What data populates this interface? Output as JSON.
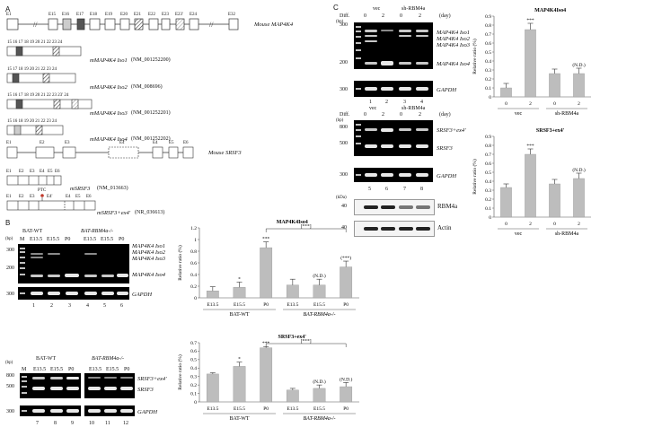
{
  "panels": {
    "a": "A",
    "b": "B",
    "c": "C"
  },
  "panel_a": {
    "map4k4_gene": {
      "exons": [
        "E1",
        "E15",
        "E16",
        "E17",
        "E18",
        "E19",
        "E20",
        "E21",
        "E22",
        "E23",
        "E23'",
        "E24",
        "E32"
      ],
      "break_mark": "//",
      "label": "Mouse MAP4K4"
    },
    "map4k4_isoforms": [
      {
        "exons": "15 16 17 18 19 20 21 22 23 24",
        "name": "mMAP4K4 Iso1",
        "accession": "(NM_001252200)"
      },
      {
        "exons": "15 17 18 19 20 21 22 23 24",
        "name": "mMAP4K4 Iso2",
        "accession": "(NM_008696)"
      },
      {
        "exons": "15 16 17 18 19 20 21 22 23 23' 24",
        "name": "mMAP4K4 Iso3",
        "accession": "(NM_001252201)"
      },
      {
        "exons": "15 16 18 19 20 21 22 23 24",
        "name": "mMAP4K4 Iso4",
        "accession": "(NM_001252202)"
      }
    ],
    "srsf3_gene": {
      "exons": [
        "E1",
        "E2",
        "E3",
        "E4'",
        "E4",
        "E5",
        "E6"
      ],
      "label": "Mouse SRSF3"
    },
    "srsf3_isoforms": [
      {
        "exons": [
          "E1",
          "E2",
          "E3",
          "E4",
          "E5",
          "E6"
        ],
        "name": "mSRSF3",
        "accession": "(NM_013663)"
      },
      {
        "exons": [
          "E1",
          "E2",
          "E3",
          "E4'",
          "E4",
          "E5",
          "E6"
        ],
        "name": "mSRSF3+ex4'",
        "accession": "(NR_036613)",
        "ptc": "PTC"
      }
    ]
  },
  "panel_b": {
    "gel_top": {
      "bp_label": "(bp)",
      "lane_M": "M",
      "groups": [
        "BAT-WT",
        "BAT-RBM4a-/-"
      ],
      "lanes": [
        "E13.5",
        "E15.5",
        "P0",
        "E13.5",
        "E15.5",
        "P0"
      ],
      "lane_numbers": [
        "1",
        "2",
        "3",
        "4",
        "5",
        "6"
      ],
      "markers": [
        "300",
        "200",
        "300"
      ],
      "band_labels": [
        "MAP4K4 Iso1",
        "MAP4K4 Iso2",
        "MAP4K4 Iso3",
        "MAP4K4 Iso4"
      ],
      "control_label": "GAPDH"
    },
    "gel_bottom": {
      "bp_label": "(bp)",
      "lane_M": "M",
      "groups": [
        "BAT-WT",
        "BAT-RBM4a-/-"
      ],
      "lanes": [
        "E13.5",
        "E15.5",
        "P0",
        "E13.5",
        "E15.5",
        "P0"
      ],
      "lane_numbers": [
        "7",
        "8",
        "9",
        "10",
        "11",
        "12"
      ],
      "markers": [
        "800",
        "500",
        "300"
      ],
      "band_labels": [
        "SRSF3+ex4'",
        "SRSF3"
      ],
      "control_label": "GAPDH"
    }
  },
  "panel_c": {
    "gel_top": {
      "diff_label": "Diff.",
      "day_label": "(day)",
      "groups": [
        "vec",
        "sh-RBM4a"
      ],
      "lanes": [
        "0",
        "2",
        "0",
        "2"
      ],
      "lane_numbers": [
        "1",
        "2",
        "3",
        "4"
      ],
      "bp_label": "(bp)",
      "markers": [
        "300",
        "200",
        "300"
      ],
      "band_labels": [
        "MAP4K4 Iso1",
        "MAP4K4 Iso2",
        "MAP4K4 Iso3",
        "MAP4K4 Iso4"
      ],
      "control_label": "GAPDH"
    },
    "gel_bottom": {
      "diff_label": "Diff.",
      "day_label": "(day)",
      "groups": [
        "vec",
        "sh-RBM4a"
      ],
      "lanes": [
        "0",
        "2",
        "0",
        "2"
      ],
      "lane_numbers": [
        "5",
        "6",
        "7",
        "8"
      ],
      "bp_label": "(bp)",
      "markers": [
        "800",
        "500",
        "300"
      ],
      "band_labels": [
        "SRSF3+ex4'",
        "SRSF3"
      ],
      "control_label": "GAPDH"
    },
    "western": {
      "kda_label": "(kDa)",
      "markers": [
        "40",
        "40"
      ],
      "labels": [
        "RBM4a",
        "Actin"
      ]
    }
  },
  "colors": {
    "bar": "#bdbdbd",
    "gel": "#000000",
    "band": "#e8e8e8"
  },
  "chart_data": [
    {
      "id": "b-map4k4",
      "type": "bar",
      "title": "MAP4K4Iso4",
      "ylabel": "Relative ratio (%)",
      "ylim": [
        0,
        1.2
      ],
      "yticks": [
        "0",
        "0.2",
        "0.4",
        "0.6",
        "0.8",
        "1",
        "1.2"
      ],
      "categories": [
        "E13.5",
        "E15.5",
        "P0",
        "E13.5",
        "E15.5",
        "P0"
      ],
      "values": [
        0.12,
        0.18,
        0.86,
        0.22,
        0.22,
        0.53
      ],
      "errors": [
        0.07,
        0.09,
        0.1,
        0.1,
        0.1,
        0.1
      ],
      "annotations": [
        "",
        "*",
        "***",
        "",
        "(N.D.)",
        "(***)"
      ],
      "groups": [
        "BAT-WT",
        "BAT-RBM4a-/-"
      ],
      "bracket": "[***]"
    },
    {
      "id": "b-srsf3",
      "type": "bar",
      "title": "SRSF3+ex4'",
      "ylabel": "Relative ratio (%)",
      "ylim": [
        0,
        0.7
      ],
      "yticks": [
        "0",
        "0.1",
        "0.2",
        "0.3",
        "0.4",
        "0.5",
        "0.6",
        "0.7"
      ],
      "categories": [
        "E13.5",
        "E15.5",
        "P0",
        "E13.5",
        "E15.5",
        "P0"
      ],
      "values": [
        0.33,
        0.42,
        0.64,
        0.14,
        0.16,
        0.18
      ],
      "errors": [
        0.015,
        0.05,
        0.015,
        0.02,
        0.04,
        0.05
      ],
      "annotations": [
        "",
        "*",
        "***",
        "",
        "(N.D.)",
        "(N.D.)"
      ],
      "groups": [
        "BAT-WT",
        "BAT-RBM4a-/-"
      ],
      "bracket": "[***]"
    },
    {
      "id": "c-map4k4",
      "type": "bar",
      "title": "MAP4K4Iso4",
      "ylabel": "Relative ratio (%)",
      "ylim": [
        0,
        0.9
      ],
      "yticks": [
        "0",
        "0.1",
        "0.2",
        "0.3",
        "0.4",
        "0.5",
        "0.6",
        "0.7",
        "0.8",
        "0.9"
      ],
      "categories": [
        "0",
        "2",
        "0",
        "2"
      ],
      "values": [
        0.1,
        0.75,
        0.26,
        0.26
      ],
      "errors": [
        0.05,
        0.07,
        0.05,
        0.06
      ],
      "annotations": [
        "",
        "***",
        "",
        "(N.D.)"
      ],
      "groups": [
        "vec",
        "sh-RBM4a"
      ]
    },
    {
      "id": "c-srsf3",
      "type": "bar",
      "title": "SRSF3+ex4'",
      "ylabel": "Relative ratio (%)",
      "ylim": [
        0,
        0.9
      ],
      "yticks": [
        "0",
        "0.1",
        "0.2",
        "0.3",
        "0.4",
        "0.5",
        "0.6",
        "0.7",
        "0.8",
        "0.9"
      ],
      "categories": [
        "0",
        "2",
        "0",
        "2"
      ],
      "values": [
        0.33,
        0.7,
        0.37,
        0.43
      ],
      "errors": [
        0.04,
        0.06,
        0.05,
        0.06
      ],
      "annotations": [
        "",
        "***",
        "",
        "(N.D.)"
      ],
      "groups": [
        "vec",
        "sh-RBM4a"
      ]
    }
  ]
}
